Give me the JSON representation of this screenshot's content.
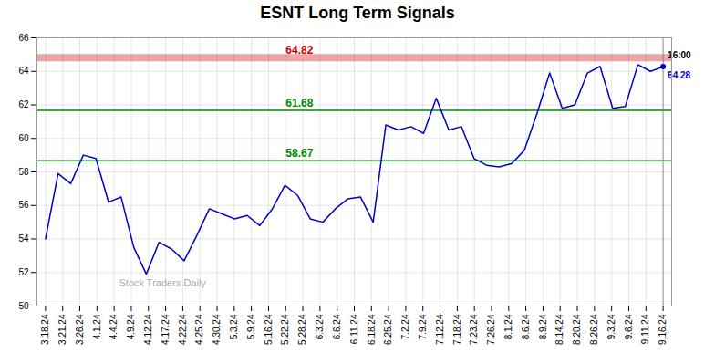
{
  "chart_data": {
    "type": "line",
    "title": "ESNT Long Term Signals",
    "color": "#0000cc",
    "x": [
      0,
      0.7347,
      1.4694,
      2.2041,
      2.9388,
      3.6735,
      4.4082,
      5.1429,
      5.8776,
      6.6122,
      7.3469,
      8.0816,
      8.8163,
      9.551,
      10.2857,
      11.0204,
      11.7551,
      12.4898,
      13.2245,
      13.9592,
      14.6939,
      15.4286,
      16.1633,
      16.898,
      17.6327,
      18.3673,
      19.102,
      19.8367,
      20.5714,
      21.3061,
      22.0408,
      22.7755,
      23.5102,
      24.2449,
      24.9796,
      25.7143,
      26.449,
      27.1837,
      27.9184,
      28.6531,
      29.3878,
      30.1224,
      30.8571,
      31.5918,
      32.3265,
      33.0612,
      33.7959,
      34.5306,
      35.2653,
      36
    ],
    "values": [
      54.0,
      57.9,
      57.3,
      59.0,
      58.8,
      56.2,
      56.5,
      53.5,
      51.9,
      53.8,
      53.4,
      52.7,
      54.2,
      55.8,
      55.5,
      55.2,
      55.4,
      54.8,
      55.8,
      57.2,
      56.6,
      55.2,
      55.0,
      55.8,
      56.4,
      56.5,
      55.0,
      60.8,
      60.5,
      60.7,
      60.3,
      62.4,
      60.5,
      60.7,
      58.8,
      58.4,
      58.3,
      58.5,
      59.3,
      61.5,
      63.9,
      61.8,
      62.0,
      63.9,
      64.3,
      61.8,
      61.9,
      64.4,
      64.0,
      64.28
    ],
    "xlim": [
      -0.5,
      36.5
    ],
    "xticks": [
      {
        "value": 0,
        "label": "3.18.24"
      },
      {
        "value": 1,
        "label": "3.21.24"
      },
      {
        "value": 2,
        "label": "3.26.24"
      },
      {
        "value": 3,
        "label": "4.1.24"
      },
      {
        "value": 4,
        "label": "4.4.24"
      },
      {
        "value": 5,
        "label": "4.9.24"
      },
      {
        "value": 6,
        "label": "4.12.24"
      },
      {
        "value": 7,
        "label": "4.17.24"
      },
      {
        "value": 8,
        "label": "4.22.24"
      },
      {
        "value": 9,
        "label": "4.25.24"
      },
      {
        "value": 10,
        "label": "4.30.24"
      },
      {
        "value": 11,
        "label": "5.3.24"
      },
      {
        "value": 12,
        "label": "5.9.24"
      },
      {
        "value": 13,
        "label": "5.16.24"
      },
      {
        "value": 14,
        "label": "5.22.24"
      },
      {
        "value": 15,
        "label": "5.28.24"
      },
      {
        "value": 16,
        "label": "6.3.24"
      },
      {
        "value": 17,
        "label": "6.6.24"
      },
      {
        "value": 18,
        "label": "6.11.24"
      },
      {
        "value": 19,
        "label": "6.18.24"
      },
      {
        "value": 20,
        "label": "6.25.24"
      },
      {
        "value": 21,
        "label": "7.2.24"
      },
      {
        "value": 22,
        "label": "7.9.24"
      },
      {
        "value": 23,
        "label": "7.12.24"
      },
      {
        "value": 24,
        "label": "7.18.24"
      },
      {
        "value": 25,
        "label": "7.23.24"
      },
      {
        "value": 26,
        "label": "7.26.24"
      },
      {
        "value": 27,
        "label": "8.1.24"
      },
      {
        "value": 28,
        "label": "8.6.24"
      },
      {
        "value": 29,
        "label": "8.9.24"
      },
      {
        "value": 30,
        "label": "8.14.24"
      },
      {
        "value": 31,
        "label": "8.20.24"
      },
      {
        "value": 32,
        "label": "8.26.24"
      },
      {
        "value": 33,
        "label": "9.3.24"
      },
      {
        "value": 34,
        "label": "9.6.24"
      },
      {
        "value": 35,
        "label": "9.11.24"
      },
      {
        "value": 36,
        "label": "9.16.24"
      }
    ],
    "ylim": [
      50,
      66
    ],
    "yticks": [
      50,
      52,
      54,
      56,
      58,
      60,
      62,
      64,
      66
    ],
    "grid": true,
    "reference_lines": [
      {
        "y": 64.82,
        "label": "64.82",
        "color": "#cc0000",
        "line_style": "band"
      },
      {
        "y": 61.68,
        "label": "61.68",
        "color": "#008800",
        "line_style": "solid"
      },
      {
        "y": 58.67,
        "label": "58.67",
        "color": "#008800",
        "line_style": "solid"
      }
    ],
    "end_labels": [
      "16:00",
      "64.28"
    ],
    "watermark": "Stock Traders Daily"
  }
}
